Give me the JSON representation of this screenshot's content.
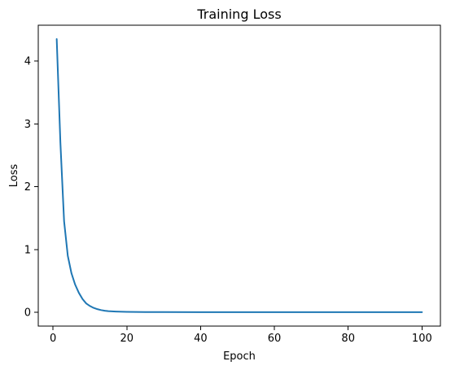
{
  "chart_data": {
    "type": "line",
    "title": "Training Loss",
    "xlabel": "Epoch",
    "ylabel": "Loss",
    "xlim": [
      -4,
      105
    ],
    "ylim": [
      -0.22,
      4.57
    ],
    "xticks": [
      0,
      20,
      40,
      60,
      80,
      100
    ],
    "yticks": [
      0,
      1,
      2,
      3,
      4
    ],
    "grid": false,
    "series": [
      {
        "color": "#1f77b4",
        "x": [
          1,
          2,
          3,
          4,
          5,
          6,
          7,
          8,
          9,
          10,
          11,
          12,
          13,
          14,
          15,
          16,
          17,
          18,
          20,
          25,
          30,
          40,
          50,
          60,
          70,
          80,
          90,
          100
        ],
        "y": [
          4.35,
          2.7,
          1.45,
          0.9,
          0.62,
          0.44,
          0.31,
          0.21,
          0.14,
          0.1,
          0.07,
          0.05,
          0.035,
          0.025,
          0.018,
          0.014,
          0.011,
          0.009,
          0.007,
          0.004,
          0.003,
          0.002,
          0.002,
          0.001,
          0.001,
          0.001,
          0.001,
          0.001
        ]
      }
    ]
  }
}
